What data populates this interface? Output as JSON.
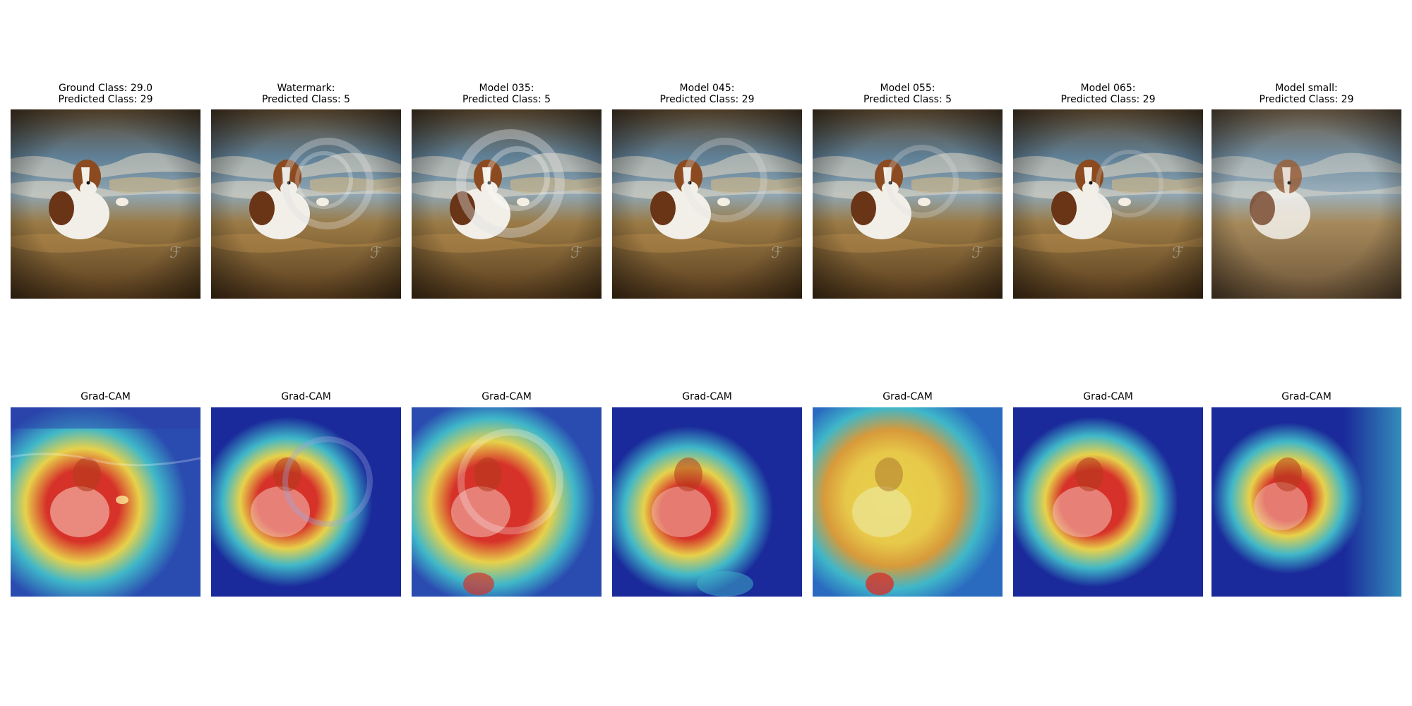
{
  "figure": {
    "top_row": [
      {
        "line1": "Ground Class: 29.0",
        "line2": "Predicted Class: 29"
      },
      {
        "line1": "Watermark:",
        "line2": "Predicted Class: 5"
      },
      {
        "line1": "Model 035:",
        "line2": "Predicted Class: 5"
      },
      {
        "line1": "Model 045:",
        "line2": "Predicted Class: 29"
      },
      {
        "line1": "Model 055:",
        "line2": "Predicted Class: 5"
      },
      {
        "line1": "Model 065:",
        "line2": "Predicted Class: 29"
      },
      {
        "line1": "Model small:",
        "line2": "Predicted Class: 29"
      }
    ],
    "bottom_row": [
      {
        "title": "Grad-CAM"
      },
      {
        "title": "Grad-CAM"
      },
      {
        "title": "Grad-CAM"
      },
      {
        "title": "Grad-CAM"
      },
      {
        "title": "Grad-CAM"
      },
      {
        "title": "Grad-CAM"
      },
      {
        "title": "Grad-CAM"
      }
    ],
    "colors": {
      "water_dark": "#4a3620",
      "water_brown": "#8a6a3a",
      "water_blue": "#5f7f95",
      "foam": "#e7ddc8",
      "dog_brown": "#8b4a1f",
      "dog_white": "#f2efe9",
      "cam_blue": "#1a2a9a",
      "cam_cyan": "#3fb7c9",
      "cam_yellow": "#e7d14a",
      "cam_red": "#d6322a"
    }
  }
}
